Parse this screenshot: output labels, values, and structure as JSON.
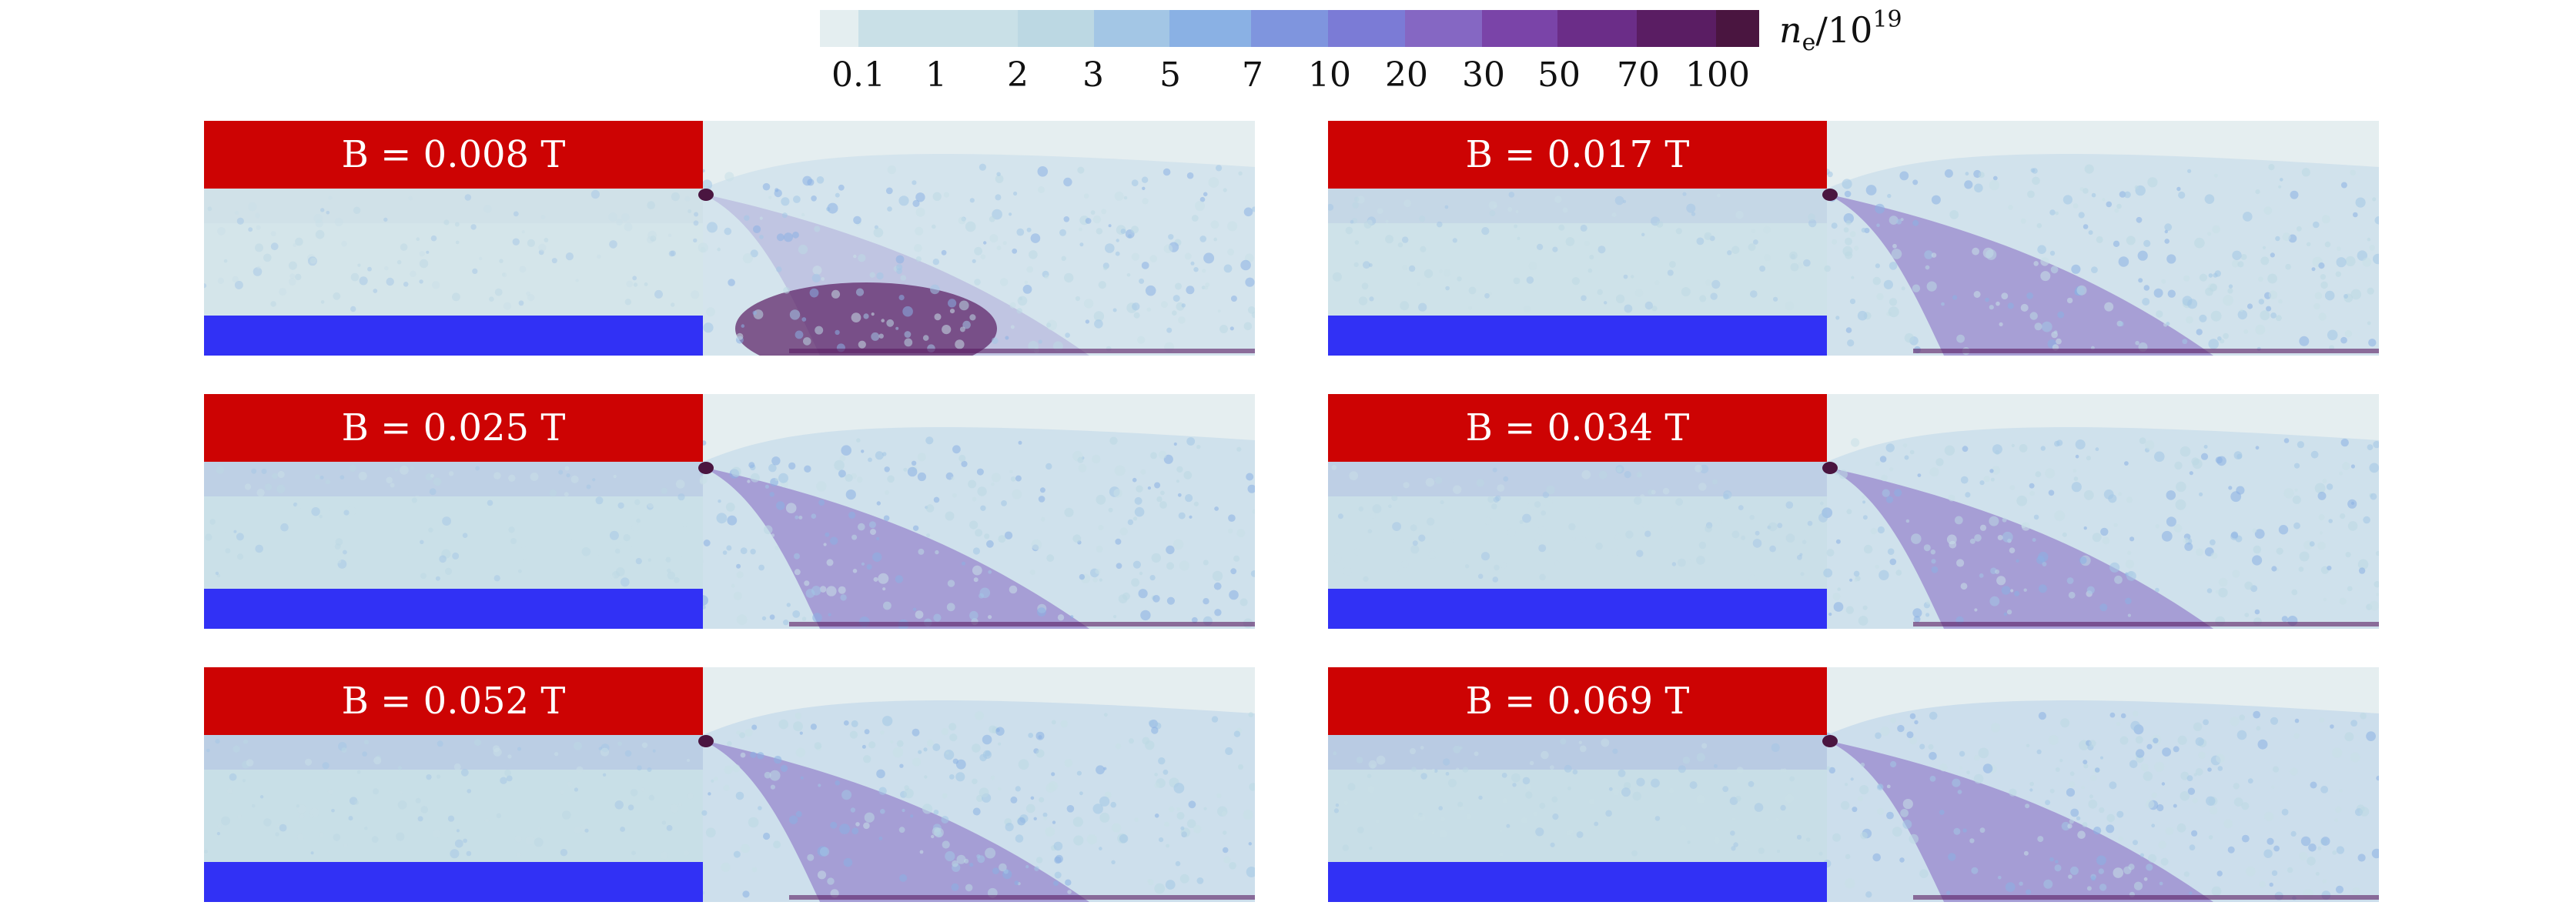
{
  "colorbar": {
    "unit": {
      "symbol": "n",
      "subscript": "e",
      "divisor": "/10",
      "exponent": "19"
    },
    "ticks": [
      "0.1",
      "1",
      "2",
      "3",
      "5",
      "7",
      "10",
      "20",
      "30",
      "50",
      "70",
      "100"
    ],
    "colors": [
      "#e4eef0",
      "#c9e0e7",
      "#bcd8e3",
      "#a3c6e5",
      "#8ab1e4",
      "#7f95de",
      "#7b7bd6",
      "#8567c3",
      "#7a44a8",
      "#6b2d88",
      "#5a1d63",
      "#4a1540",
      "#3a0e26"
    ]
  },
  "panels": [
    {
      "label": "B = 0.008 T",
      "field": "0.008"
    },
    {
      "label": "B = 0.017 T",
      "field": "0.017"
    },
    {
      "label": "B = 0.025 T",
      "field": "0.025"
    },
    {
      "label": "B = 0.034 T",
      "field": "0.034"
    },
    {
      "label": "B = 0.052 T",
      "field": "0.052"
    },
    {
      "label": "B = 0.069 T",
      "field": "0.069"
    }
  ],
  "colors": {
    "electrode_top": "#cd0303",
    "electrode_bottom": "#3131f5",
    "background": "#e5eef0"
  }
}
